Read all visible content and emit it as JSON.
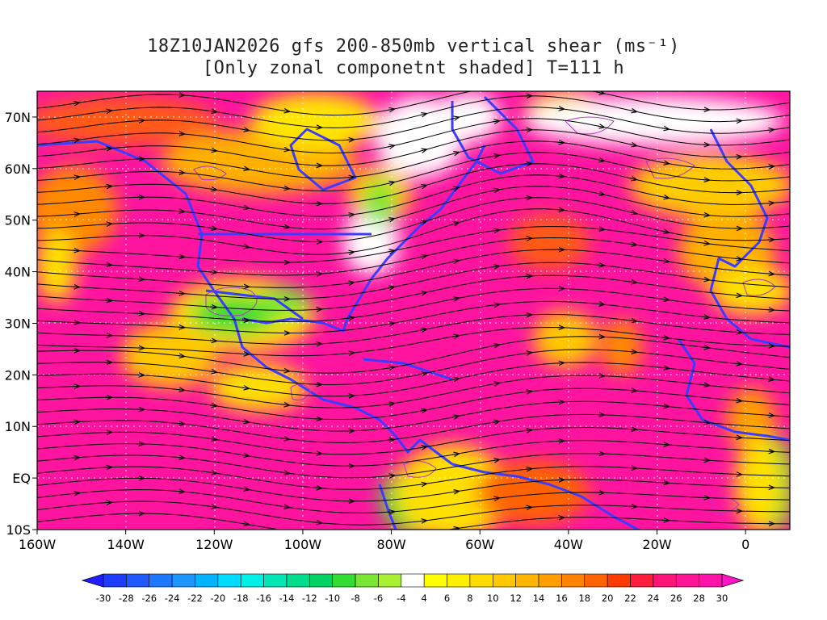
{
  "title": {
    "line1": "18Z10JAN2026 gfs 200-850mb vertical shear (ms⁻¹)",
    "line2": "[Only zonal componetnt shaded] T=111 h"
  },
  "map": {
    "lat_labels": [
      "70N",
      "60N",
      "50N",
      "40N",
      "30N",
      "20N",
      "10N",
      "EQ",
      "10S"
    ],
    "lat_values": [
      70,
      60,
      50,
      40,
      30,
      20,
      10,
      0,
      -10
    ],
    "lon_labels": [
      "160W",
      "140W",
      "120W",
      "100W",
      "80W",
      "60W",
      "40W",
      "20W",
      "0"
    ],
    "lon_values": [
      -160,
      -140,
      -120,
      -100,
      -80,
      -60,
      -40,
      -20,
      0
    ],
    "lon_range": [
      -160,
      10
    ],
    "lat_range": [
      -10,
      75
    ],
    "grid": "dotted"
  },
  "colorbar": {
    "labels": [
      "-30",
      "-28",
      "-26",
      "-24",
      "-22",
      "-20",
      "-18",
      "-16",
      "-14",
      "-12",
      "-10",
      "-8",
      "-6",
      "-4",
      "4",
      "6",
      "8",
      "10",
      "12",
      "14",
      "16",
      "18",
      "20",
      "22",
      "24",
      "26",
      "28",
      "30"
    ],
    "colors": [
      "#1e3cff",
      "#1e5aff",
      "#1e78ff",
      "#1e96ff",
      "#00b4ff",
      "#00dcff",
      "#00f0e6",
      "#00e6b4",
      "#00dc8c",
      "#00d264",
      "#32dc32",
      "#78e632",
      "#aaf032",
      "#ffffff",
      "#ffff00",
      "#fff000",
      "#ffdc00",
      "#ffc800",
      "#ffb400",
      "#ffa000",
      "#ff8200",
      "#ff6400",
      "#ff3c00",
      "#ff1e3c",
      "#ff1478",
      "#ff1496",
      "#ff14aa"
    ],
    "left_arrow_color": "#1e1eff",
    "right_arrow_color": "#ff14c8"
  },
  "colors": {
    "coast": "#3c3cff",
    "contour": "#b432c8",
    "streamline": "#000000"
  }
}
